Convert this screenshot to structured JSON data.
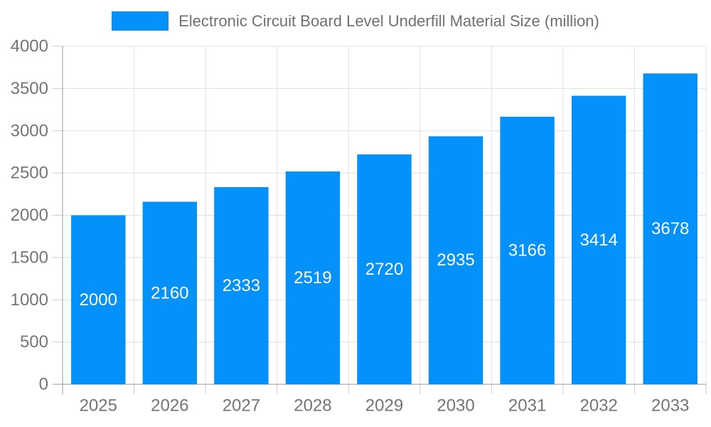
{
  "legend": {
    "series_label": "Electronic Circuit Board Level Underfill Material Size (million)"
  },
  "chart_data": {
    "type": "bar",
    "title": "Electronic Circuit Board Level Underfill Material Size (million)",
    "categories": [
      "2025",
      "2026",
      "2027",
      "2028",
      "2029",
      "2030",
      "2031",
      "2032",
      "2033"
    ],
    "values": [
      2000,
      2160,
      2333,
      2519,
      2720,
      2935,
      3166,
      3414,
      3678
    ],
    "xlabel": "",
    "ylabel": "",
    "ylim": [
      0,
      4000
    ],
    "yticks": [
      0,
      500,
      1000,
      1500,
      2000,
      2500,
      3000,
      3500,
      4000
    ],
    "grid": true,
    "legend_position": "top-center",
    "data_labels": "centered-inside-bars",
    "bar_color": "#0591fa",
    "data_label_color": "#ffffff",
    "axis_label_color": "#757575",
    "title_color": "#707070",
    "grid_color": "#e0e0e0",
    "axis_line_color": "#999999",
    "tick_color": "#cccccc",
    "background_color": "#ffffff"
  }
}
